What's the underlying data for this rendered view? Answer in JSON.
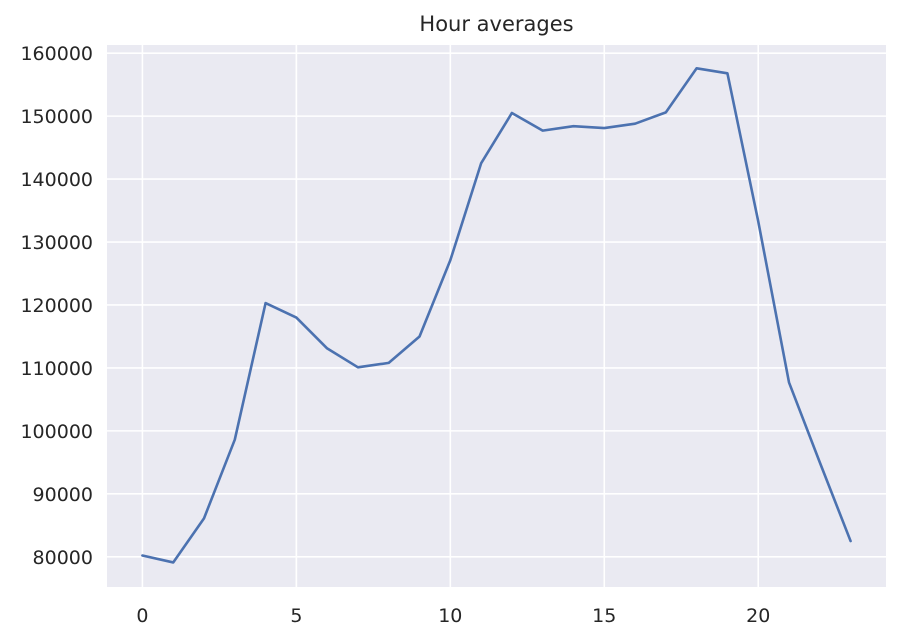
{
  "chart_data": {
    "type": "line",
    "title": "Hour averages",
    "xlabel": "",
    "ylabel": "",
    "xlim": [
      -1.15,
      24.15
    ],
    "ylim": [
      75200,
      161300
    ],
    "x_ticks": [
      0,
      5,
      10,
      15,
      20
    ],
    "y_ticks": [
      80000,
      90000,
      100000,
      110000,
      120000,
      130000,
      140000,
      150000,
      160000
    ],
    "grid": true,
    "legend": "none",
    "colors": {
      "background": "#eaeaf2",
      "grid": "#ffffff",
      "line": "#4c72b0",
      "text": "#262626"
    },
    "series": [
      {
        "x": [
          0,
          1,
          2,
          3,
          4,
          5,
          6,
          7,
          8,
          9,
          10,
          11,
          12,
          13,
          14,
          15,
          16,
          17,
          18,
          19,
          20,
          21,
          22,
          23
        ],
        "values": [
          80200,
          79100,
          86100,
          98600,
          120300,
          118000,
          113100,
          110100,
          110800,
          115000,
          127100,
          142500,
          150500,
          147700,
          148400,
          148100,
          148800,
          150600,
          157600,
          156800,
          133300,
          107700,
          95000,
          82500
        ]
      }
    ]
  }
}
